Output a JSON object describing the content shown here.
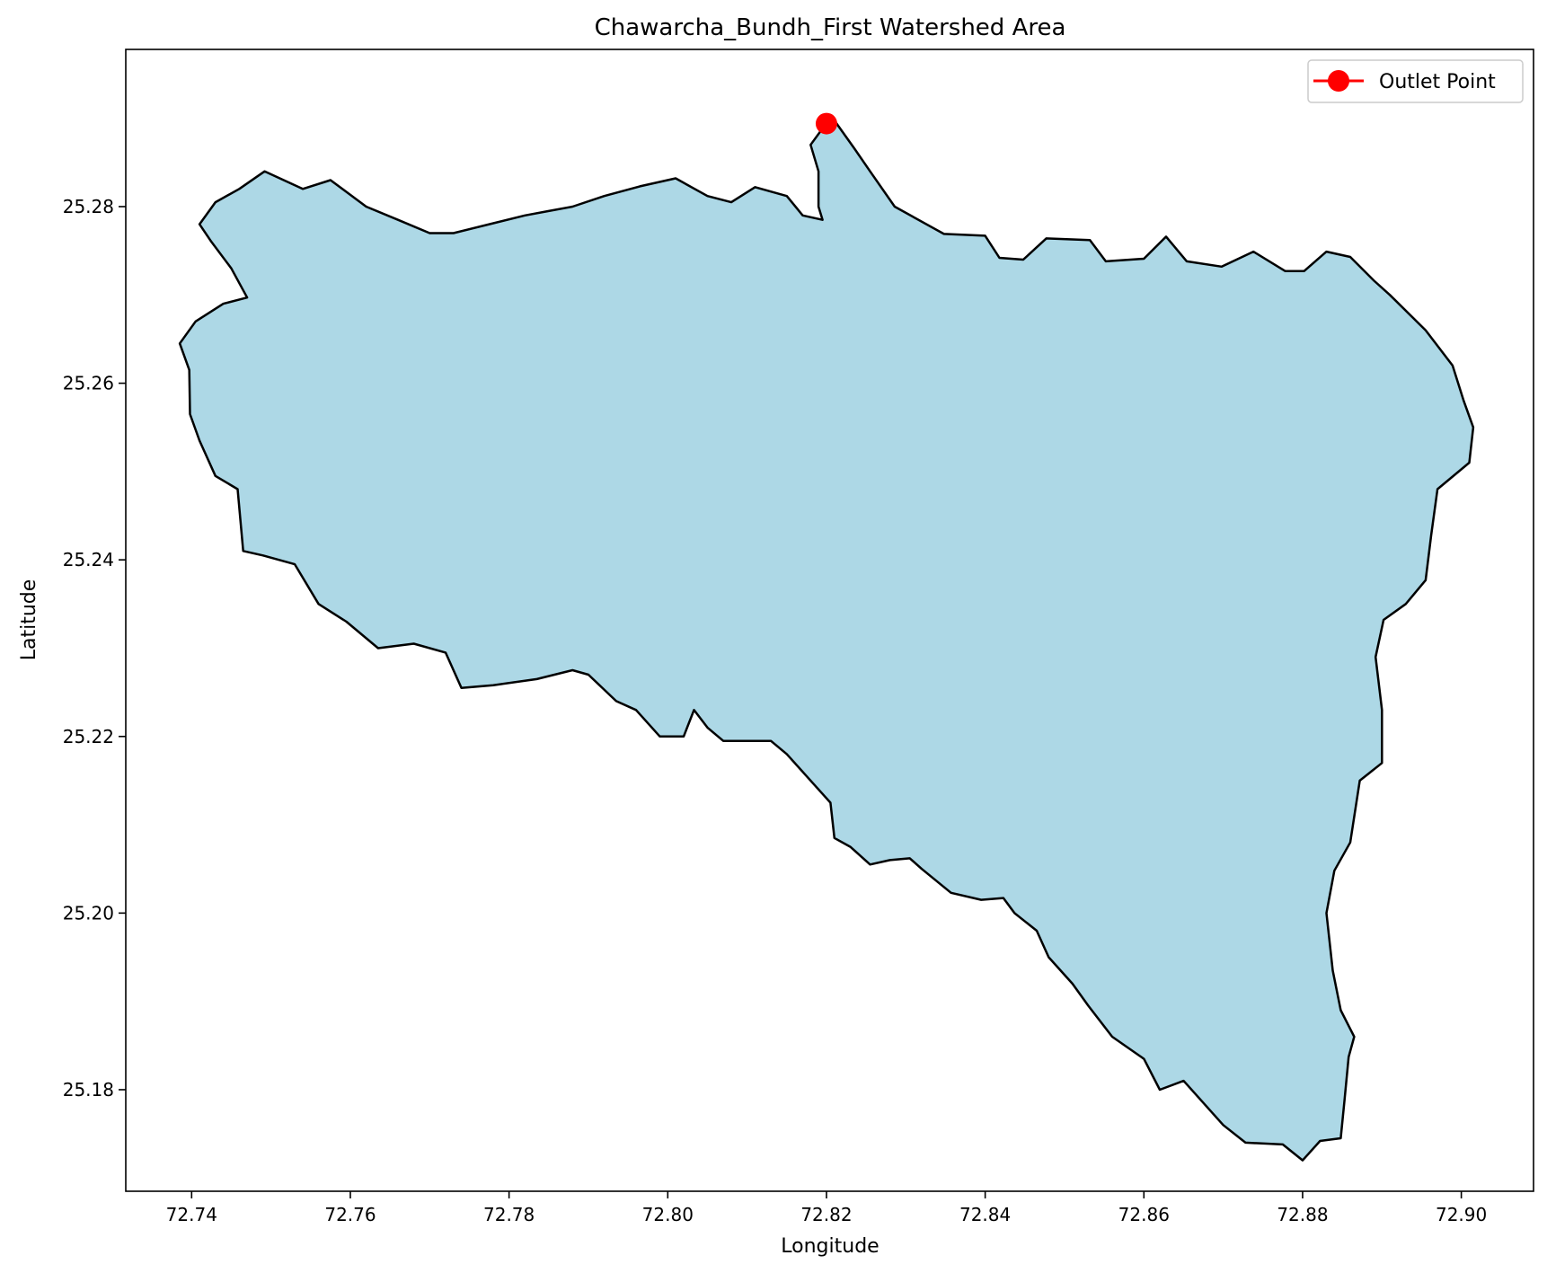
{
  "chart_data": {
    "type": "map",
    "title": "Chawarcha_Bundh_First Watershed Area",
    "xlabel": "Longitude",
    "ylabel": "Latitude",
    "xlim": [
      72.7317,
      72.9091
    ],
    "ylim": [
      25.1685,
      25.2978
    ],
    "x_ticks": [
      72.74,
      72.76,
      72.78,
      72.8,
      72.82,
      72.84,
      72.86,
      72.88,
      72.9
    ],
    "x_tick_labels": [
      "72.74",
      "72.76",
      "72.78",
      "72.80",
      "72.82",
      "72.84",
      "72.86",
      "72.88",
      "72.90"
    ],
    "y_ticks": [
      25.18,
      25.2,
      25.22,
      25.24,
      25.26,
      25.28
    ],
    "y_tick_labels": [
      "25.18",
      "25.20",
      "25.22",
      "25.24",
      "25.26",
      "25.28"
    ],
    "grid": false,
    "legend_position": "top-right",
    "legend": [
      {
        "label": "Outlet Point",
        "color": "#ff0000",
        "marker": "circle",
        "line": true
      }
    ],
    "outlet_point": {
      "label": "Outlet Point",
      "lon": 72.82,
      "lat": 25.2894,
      "color": "#ff0000"
    },
    "watershed": {
      "fill_color": "#add8e6",
      "edge_color": "#000000",
      "boundary": [
        [
          72.8202,
          25.2897
        ],
        [
          72.8212,
          25.2895
        ],
        [
          72.8235,
          25.2866
        ],
        [
          72.8255,
          25.284
        ],
        [
          72.8286,
          25.28
        ],
        [
          72.8348,
          25.2769
        ],
        [
          72.84,
          25.2767
        ],
        [
          72.8418,
          25.2742
        ],
        [
          72.8448,
          25.274
        ],
        [
          72.8477,
          25.2764
        ],
        [
          72.8532,
          25.2762
        ],
        [
          72.8552,
          25.2738
        ],
        [
          72.86,
          25.2741
        ],
        [
          72.8628,
          25.2766
        ],
        [
          72.8654,
          25.2738
        ],
        [
          72.8698,
          25.2732
        ],
        [
          72.8738,
          25.2749
        ],
        [
          72.8778,
          25.2727
        ],
        [
          72.8802,
          25.2727
        ],
        [
          72.883,
          25.2749
        ],
        [
          72.886,
          25.2743
        ],
        [
          72.889,
          25.2716
        ],
        [
          72.891,
          25.27
        ],
        [
          72.8955,
          25.266
        ],
        [
          72.8989,
          25.262
        ],
        [
          72.9003,
          25.258
        ],
        [
          72.9015,
          25.255
        ],
        [
          72.901,
          25.251
        ],
        [
          72.897,
          25.248
        ],
        [
          72.8962,
          25.2428
        ],
        [
          72.8955,
          25.2377
        ],
        [
          72.893,
          25.235
        ],
        [
          72.8902,
          25.2332
        ],
        [
          72.8892,
          25.229
        ],
        [
          72.89,
          25.223
        ],
        [
          72.89,
          25.217
        ],
        [
          72.8872,
          25.215
        ],
        [
          72.886,
          25.208
        ],
        [
          72.884,
          25.2048
        ],
        [
          72.883,
          25.2
        ],
        [
          72.8838,
          25.1935
        ],
        [
          72.8848,
          25.189
        ],
        [
          72.8865,
          25.186
        ],
        [
          72.8858,
          25.1837
        ],
        [
          72.8853,
          25.179
        ],
        [
          72.8848,
          25.1745
        ],
        [
          72.8822,
          25.1742
        ],
        [
          72.88,
          25.172
        ],
        [
          72.8775,
          25.1738
        ],
        [
          72.8728,
          25.174
        ],
        [
          72.87,
          25.176
        ],
        [
          72.865,
          25.181
        ],
        [
          72.862,
          25.18
        ],
        [
          72.86,
          25.1835
        ],
        [
          72.856,
          25.186
        ],
        [
          72.853,
          25.1895
        ],
        [
          72.851,
          25.192
        ],
        [
          72.848,
          25.195
        ],
        [
          72.8465,
          25.198
        ],
        [
          72.8437,
          25.2
        ],
        [
          72.8423,
          25.2017
        ],
        [
          72.8395,
          25.2015
        ],
        [
          72.8357,
          25.2023
        ],
        [
          72.832,
          25.205
        ],
        [
          72.8305,
          25.2062
        ],
        [
          72.828,
          25.206
        ],
        [
          72.8255,
          25.2055
        ],
        [
          72.823,
          25.2075
        ],
        [
          72.821,
          25.2085
        ],
        [
          72.8205,
          25.2125
        ],
        [
          72.818,
          25.215
        ],
        [
          72.815,
          25.218
        ],
        [
          72.813,
          25.2195
        ],
        [
          72.807,
          25.2195
        ],
        [
          72.805,
          25.221
        ],
        [
          72.8033,
          25.223
        ],
        [
          72.802,
          25.22
        ],
        [
          72.799,
          25.22
        ],
        [
          72.796,
          25.223
        ],
        [
          72.7935,
          25.224
        ],
        [
          72.79,
          25.227
        ],
        [
          72.788,
          25.2275
        ],
        [
          72.7835,
          25.2265
        ],
        [
          72.778,
          25.2258
        ],
        [
          72.774,
          25.2255
        ],
        [
          72.772,
          25.2295
        ],
        [
          72.768,
          25.2305
        ],
        [
          72.7635,
          25.23
        ],
        [
          72.7595,
          25.233
        ],
        [
          72.756,
          25.235
        ],
        [
          72.753,
          25.2395
        ],
        [
          72.749,
          25.2405
        ],
        [
          72.7465,
          25.241
        ],
        [
          72.7458,
          25.248
        ],
        [
          72.743,
          25.2495
        ],
        [
          72.741,
          25.2535
        ],
        [
          72.7398,
          25.2565
        ],
        [
          72.7397,
          25.2615
        ],
        [
          72.7385,
          25.2645
        ],
        [
          72.7405,
          25.267
        ],
        [
          72.744,
          25.269
        ],
        [
          72.747,
          25.2697
        ],
        [
          72.745,
          25.273
        ],
        [
          72.7425,
          25.276
        ],
        [
          72.741,
          25.278
        ],
        [
          72.743,
          25.2805
        ],
        [
          72.746,
          25.282
        ],
        [
          72.7492,
          25.284
        ],
        [
          72.754,
          25.282
        ],
        [
          72.7575,
          25.283
        ],
        [
          72.762,
          25.28
        ],
        [
          72.766,
          25.2785
        ],
        [
          72.77,
          25.277
        ],
        [
          72.773,
          25.277
        ],
        [
          72.7775,
          25.278
        ],
        [
          72.782,
          25.279
        ],
        [
          72.785,
          25.2795
        ],
        [
          72.788,
          25.28
        ],
        [
          72.792,
          25.2812
        ],
        [
          72.7965,
          25.2823
        ],
        [
          72.801,
          25.2832
        ],
        [
          72.805,
          25.2812
        ],
        [
          72.808,
          25.2805
        ],
        [
          72.811,
          25.2822
        ],
        [
          72.815,
          25.2812
        ],
        [
          72.817,
          25.279
        ],
        [
          72.8195,
          25.2785
        ],
        [
          72.819,
          25.28
        ],
        [
          72.819,
          25.284
        ],
        [
          72.818,
          25.287
        ]
      ]
    }
  }
}
